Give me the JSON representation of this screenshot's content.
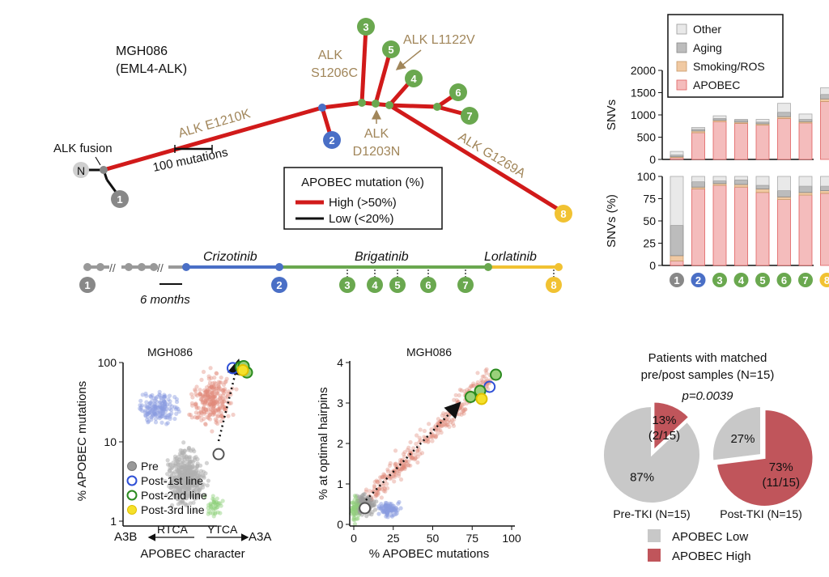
{
  "colors": {
    "high": "#d11a1a",
    "low": "#111111",
    "grey_node": "#888888",
    "blue": "#4a6fc6",
    "green": "#6aa84f",
    "yellow": "#f1c232",
    "annot": "#a1865a",
    "other": "#e9e9e9",
    "aging": "#bcbcbc",
    "smoking": "#f0c9a2",
    "apobec": "#f4bcbc",
    "apobec_edge": "#e06060",
    "pie_low": "#c8c8c8",
    "pie_high": "#c0555b"
  },
  "tree": {
    "sample": "MGH086",
    "fusion": "(EML4-ALK)",
    "root_label": "N",
    "alk_fusion": "ALK fusion",
    "scale_label": "100 mutations",
    "mutations": {
      "e1210k": "ALK E1210K",
      "s1206c_1": "ALK",
      "s1206c_2": "S1206C",
      "l1122v": "ALK L1122V",
      "d1203n_1": "ALK",
      "d1203n_2": "D1203N",
      "g1269a": "ALK G1269A"
    },
    "legend": {
      "title": "APOBEC mutation (%)",
      "high": "High (>50%)",
      "low": "Low (<20%)"
    },
    "nodes": [
      "1",
      "2",
      "3",
      "4",
      "5",
      "6",
      "7",
      "8"
    ]
  },
  "timeline": {
    "drugs": [
      "Crizotinib",
      "Brigatinib",
      "Lorlatinib"
    ],
    "scale": "6 months",
    "samples": [
      "1",
      "2",
      "3",
      "4",
      "5",
      "6",
      "7",
      "8"
    ]
  },
  "chart_data": [
    {
      "type": "bar",
      "name": "SNV counts (stacked)",
      "categories": [
        "1",
        "2",
        "3",
        "4",
        "5",
        "6",
        "7",
        "8"
      ],
      "ylabel": "SNVs",
      "ylim": [
        0,
        2000
      ],
      "yticks": [
        "0",
        "500",
        "1000",
        "1500",
        "2000"
      ],
      "series": [
        {
          "name": "APOBEC",
          "values": [
            40,
            600,
            850,
            810,
            770,
            920,
            820,
            1300
          ]
        },
        {
          "name": "Smoking/ROS",
          "values": [
            20,
            40,
            30,
            30,
            30,
            40,
            30,
            60
          ]
        },
        {
          "name": "Aging",
          "values": [
            40,
            40,
            40,
            40,
            40,
            100,
            50,
            100
          ]
        },
        {
          "name": "Other",
          "values": [
            80,
            40,
            60,
            20,
            60,
            200,
            120,
            150
          ]
        }
      ],
      "legend": [
        "Other",
        "Aging",
        "Smoking/ROS",
        "APOBEC"
      ]
    },
    {
      "type": "bar",
      "name": "SNV fractions (stacked %)",
      "categories": [
        "1",
        "2",
        "3",
        "4",
        "5",
        "6",
        "7",
        "8"
      ],
      "ylabel": "SNVs (%)",
      "ylim": [
        0,
        100
      ],
      "yticks": [
        "0",
        "25",
        "50",
        "75",
        "100"
      ],
      "series": [
        {
          "name": "APOBEC",
          "values": [
            5,
            86,
            90,
            88,
            82,
            74,
            79,
            81
          ]
        },
        {
          "name": "Smoking/ROS",
          "values": [
            6,
            2,
            2,
            3,
            4,
            3,
            3,
            3
          ]
        },
        {
          "name": "Aging",
          "values": [
            34,
            6,
            3,
            5,
            4,
            7,
            7,
            5
          ]
        },
        {
          "name": "Other",
          "values": [
            55,
            6,
            5,
            4,
            10,
            16,
            11,
            11
          ]
        }
      ]
    },
    {
      "type": "scatter",
      "title": "MGH086",
      "xlabel": "APOBEC character",
      "ylabel": "% APOBEC mutations",
      "yscale": "log",
      "ylim": [
        1,
        100
      ],
      "yticks": [
        "1",
        "10",
        "100"
      ],
      "x_left": "A3B",
      "x_right": "A3A",
      "x_left_motif": "RTCA",
      "x_right_motif": "YTCA",
      "legend": [
        "Pre",
        "Post-1st line",
        "Post-2nd line",
        "Post-3rd line"
      ],
      "highlighted": [
        {
          "group": "Pre",
          "x": 0.0,
          "y": 7
        },
        {
          "group": "Post-1st line",
          "x": 0.35,
          "y": 85
        },
        {
          "group": "Post-2nd line",
          "x": 0.55,
          "y": 88
        },
        {
          "group": "Post-2nd line",
          "x": 0.7,
          "y": 75
        },
        {
          "group": "Post-2nd line",
          "x": 0.62,
          "y": 90
        },
        {
          "group": "Post-3rd line",
          "x": 0.6,
          "y": 80
        }
      ]
    },
    {
      "type": "scatter",
      "title": "MGH086",
      "xlabel": "% APOBEC mutations",
      "ylabel": "% at optimal hairpins",
      "xlim": [
        0,
        100
      ],
      "ylim": [
        0,
        4
      ],
      "xticks": [
        "0",
        "25",
        "50",
        "75",
        "100"
      ],
      "yticks": [
        "0",
        "1",
        "2",
        "3",
        "4"
      ],
      "highlighted": [
        {
          "group": "Pre",
          "x": 7,
          "y": 0.4
        },
        {
          "group": "Post-1st line",
          "x": 86,
          "y": 3.4
        },
        {
          "group": "Post-2nd line",
          "x": 74,
          "y": 3.15
        },
        {
          "group": "Post-2nd line",
          "x": 80,
          "y": 3.3
        },
        {
          "group": "Post-2nd line",
          "x": 90,
          "y": 3.7
        },
        {
          "group": "Post-3rd line",
          "x": 81,
          "y": 3.1
        }
      ]
    },
    {
      "type": "pie",
      "title": "Patients with matched",
      "title2": "pre/post samples (N=15)",
      "pvalue": "p=0.0039",
      "pies": [
        {
          "label": "Pre-TKI (N=15)",
          "high_pct": 13,
          "high_text": "13%",
          "high_count": "(2/15)",
          "low_text": "87%"
        },
        {
          "label": "Post-TKI (N=15)",
          "high_pct": 73,
          "high_text": "73%",
          "high_count": "(11/15)",
          "low_text": "27%"
        }
      ],
      "legend": [
        "APOBEC Low",
        "APOBEC High"
      ]
    }
  ]
}
